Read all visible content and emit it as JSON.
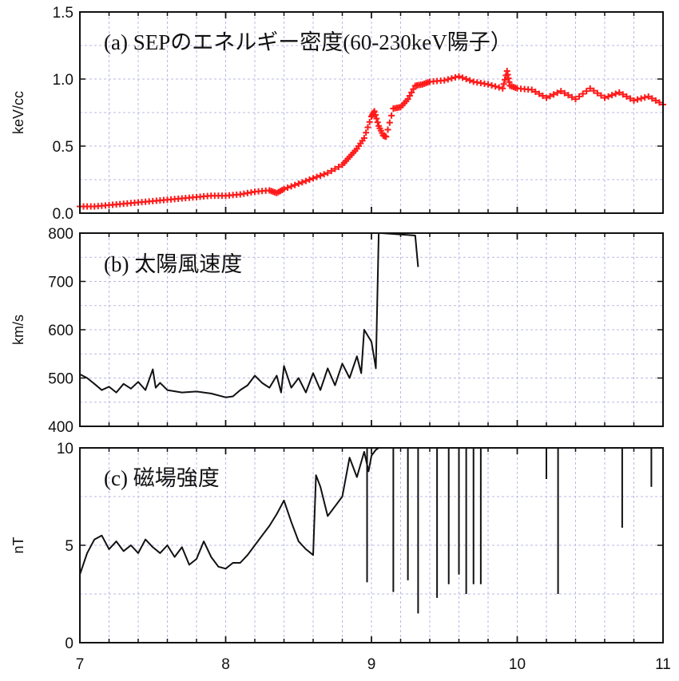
{
  "chart_data": [
    {
      "type": "scatter",
      "panel_label": "(a) SEPのエネルギー密度(60-230keV陽子）",
      "ylabel": "keV/cc",
      "ylim": [
        0,
        1.5
      ],
      "yticks": [
        "0.0",
        "0.5",
        "1.0",
        "1.5"
      ],
      "xlim": [
        7,
        11
      ],
      "grid": true,
      "color": "#ff1a1a",
      "marker": "plus",
      "series": [
        {
          "x": [
            7.0,
            7.1,
            7.2,
            7.3,
            7.4,
            7.5,
            7.6,
            7.7,
            7.8,
            7.9,
            8.0,
            8.1,
            8.2,
            8.3,
            8.35,
            8.4,
            8.5,
            8.6,
            8.7,
            8.8,
            8.85,
            8.9,
            8.95,
            9.0,
            9.02,
            9.05,
            9.08,
            9.1,
            9.15,
            9.2,
            9.25,
            9.3,
            9.35,
            9.4,
            9.5,
            9.6,
            9.7,
            9.8,
            9.9,
            9.93,
            9.95,
            10.0,
            10.1,
            10.2,
            10.3,
            10.4,
            10.5,
            10.6,
            10.7,
            10.8,
            10.9,
            11.0
          ],
          "y": [
            0.05,
            0.05,
            0.06,
            0.07,
            0.08,
            0.09,
            0.1,
            0.11,
            0.12,
            0.13,
            0.13,
            0.14,
            0.16,
            0.17,
            0.15,
            0.18,
            0.22,
            0.26,
            0.3,
            0.36,
            0.42,
            0.48,
            0.56,
            0.72,
            0.76,
            0.65,
            0.58,
            0.57,
            0.78,
            0.79,
            0.85,
            0.95,
            0.96,
            0.98,
            0.99,
            1.02,
            0.98,
            0.96,
            0.93,
            1.06,
            0.95,
            0.93,
            0.92,
            0.86,
            0.91,
            0.85,
            0.93,
            0.86,
            0.9,
            0.84,
            0.87,
            0.81
          ]
        }
      ]
    },
    {
      "type": "line",
      "panel_label": "(b) 太陽風速度",
      "ylabel": "km/s",
      "ylim": [
        400,
        800
      ],
      "yticks": [
        "400",
        "500",
        "600",
        "700",
        "800"
      ],
      "xlim": [
        7,
        11
      ],
      "grid": true,
      "color": "#111111",
      "series": [
        {
          "x": [
            7.0,
            7.05,
            7.1,
            7.15,
            7.2,
            7.25,
            7.3,
            7.35,
            7.4,
            7.45,
            7.5,
            7.52,
            7.55,
            7.6,
            7.7,
            7.8,
            7.9,
            8.0,
            8.05,
            8.1,
            8.15,
            8.2,
            8.25,
            8.3,
            8.35,
            8.38,
            8.4,
            8.45,
            8.5,
            8.55,
            8.6,
            8.65,
            8.7,
            8.75,
            8.8,
            8.85,
            8.9,
            8.93,
            8.95,
            9.0,
            9.02,
            9.03,
            9.05,
            9.07,
            9.3,
            9.32
          ],
          "y": [
            508,
            500,
            488,
            475,
            482,
            470,
            488,
            478,
            492,
            475,
            518,
            480,
            490,
            475,
            470,
            472,
            468,
            460,
            462,
            475,
            485,
            505,
            490,
            480,
            505,
            470,
            525,
            480,
            500,
            470,
            510,
            475,
            520,
            485,
            530,
            500,
            545,
            510,
            600,
            575,
            540,
            520,
            800,
            800,
            795,
            730
          ]
        }
      ]
    },
    {
      "type": "line",
      "panel_label": "(c) 磁場強度",
      "ylabel": "nT",
      "ylim": [
        0,
        10
      ],
      "yticks": [
        "0",
        "5",
        "10"
      ],
      "xlim": [
        7,
        11
      ],
      "grid": true,
      "color": "#111111",
      "series": [
        {
          "x": [
            7.0,
            7.05,
            7.1,
            7.15,
            7.2,
            7.25,
            7.3,
            7.35,
            7.4,
            7.45,
            7.5,
            7.55,
            7.6,
            7.65,
            7.7,
            7.75,
            7.8,
            7.85,
            7.9,
            7.95,
            8.0,
            8.05,
            8.1,
            8.15,
            8.2,
            8.25,
            8.3,
            8.35,
            8.4,
            8.45,
            8.5,
            8.55,
            8.6,
            8.62,
            8.65,
            8.7,
            8.75,
            8.8,
            8.85,
            8.9,
            8.95,
            8.98,
            9.0,
            9.03,
            9.05,
            9.08,
            9.12,
            9.18,
            9.22,
            9.28,
            9.35,
            9.45,
            9.5,
            9.55,
            9.6,
            9.7,
            9.8,
            10.0,
            10.2,
            10.3,
            10.4,
            10.6,
            10.75,
            10.8,
            10.9,
            11.0
          ],
          "y": [
            3.5,
            4.6,
            5.3,
            5.5,
            4.8,
            5.2,
            4.7,
            5.0,
            4.6,
            5.3,
            4.9,
            4.6,
            5.0,
            4.4,
            4.9,
            4.0,
            4.3,
            5.2,
            4.4,
            3.9,
            3.8,
            4.1,
            4.1,
            4.5,
            5.0,
            5.5,
            6.0,
            6.6,
            7.3,
            6.2,
            5.2,
            4.8,
            4.5,
            8.6,
            8.0,
            6.5,
            7.0,
            7.5,
            9.5,
            8.5,
            9.8,
            8.8,
            9.6,
            9.9,
            10.0,
            10.0,
            10.0,
            10.0,
            10.0,
            10.0,
            10.0,
            10.0,
            10.0,
            10.0,
            10.0,
            10.0,
            10.0,
            10.0,
            10.0,
            10.0,
            10.0,
            10.0,
            10.0,
            10.0,
            10.0,
            10.0
          ]
        }
      ],
      "dropouts": [
        {
          "x": 8.97,
          "y": 3.1
        },
        {
          "x": 9.15,
          "y": 2.6
        },
        {
          "x": 9.25,
          "y": 3.2
        },
        {
          "x": 9.32,
          "y": 1.5
        },
        {
          "x": 9.45,
          "y": 2.3
        },
        {
          "x": 9.53,
          "y": 3.0
        },
        {
          "x": 9.6,
          "y": 3.5
        },
        {
          "x": 9.65,
          "y": 2.5
        },
        {
          "x": 9.7,
          "y": 3.0
        },
        {
          "x": 9.75,
          "y": 3.0
        },
        {
          "x": 10.2,
          "y": 8.4
        },
        {
          "x": 10.28,
          "y": 2.5
        },
        {
          "x": 10.72,
          "y": 5.9
        },
        {
          "x": 10.92,
          "y": 8.0
        }
      ]
    }
  ],
  "x_axis": {
    "ticks": [
      "7",
      "8",
      "9",
      "10",
      "11"
    ]
  }
}
